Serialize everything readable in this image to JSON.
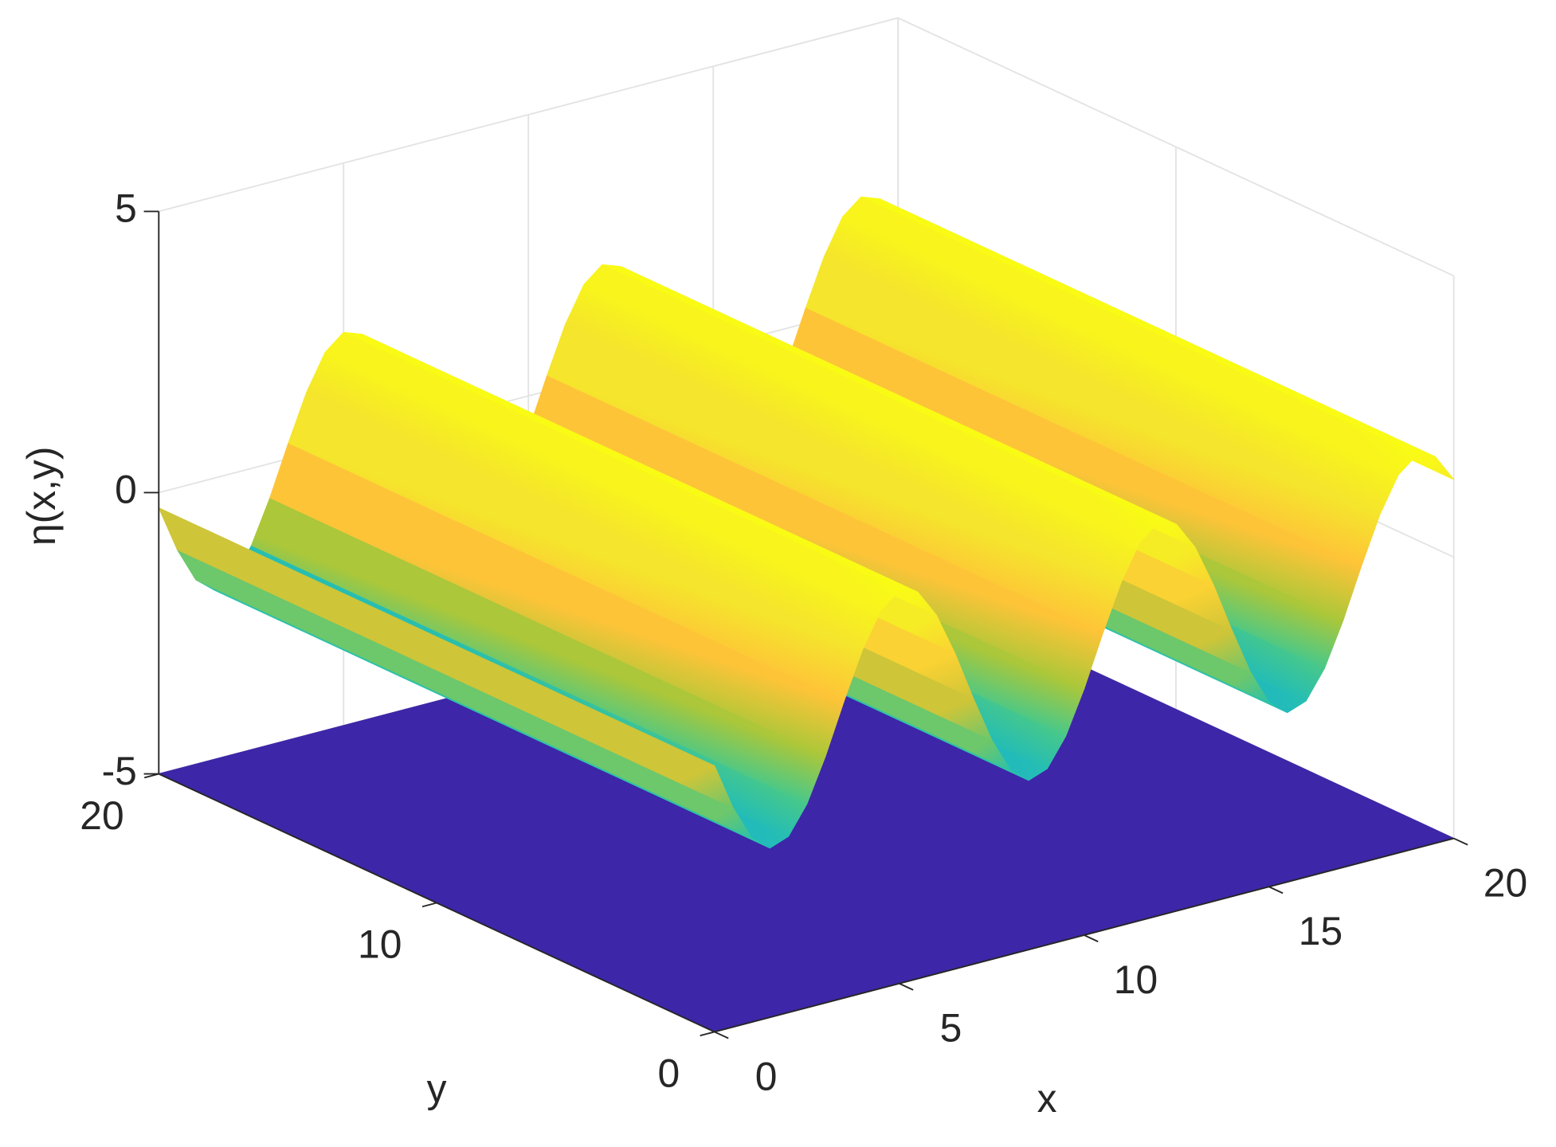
{
  "chart_data": {
    "type": "surface",
    "xlabel": "x",
    "ylabel": "y",
    "zlabel": "η(x,y)",
    "x": [
      0,
      0.5,
      1,
      1.5,
      2,
      2.5,
      3,
      3.5,
      4,
      4.5,
      5,
      5.5,
      6,
      6.5,
      7,
      7.5,
      8,
      8.5,
      9,
      9.5,
      10,
      10.5,
      11,
      11.5,
      12,
      12.5,
      13,
      13.5,
      14,
      14.5,
      15,
      15.5,
      16,
      16.5,
      17,
      17.5,
      18,
      18.5,
      19,
      19.5,
      20
    ],
    "values": [
      -0.27,
      -1.1,
      -1.72,
      -1.99,
      -1.87,
      -1.38,
      -0.62,
      0.27,
      1.1,
      1.72,
      1.99,
      1.87,
      1.38,
      0.62,
      -0.27,
      -1.1,
      -1.72,
      -1.99,
      -1.87,
      -1.38,
      -0.62,
      0.27,
      1.1,
      1.72,
      1.99,
      1.87,
      1.38,
      0.62,
      -0.27,
      -1.1,
      -1.72,
      -1.99,
      -1.87,
      -1.38,
      -0.62,
      0.27,
      1.1,
      1.72,
      1.99,
      1.87,
      1.38
    ],
    "base_plane": -5,
    "xlim": [
      0,
      20
    ],
    "ylim": [
      0,
      20
    ],
    "zlim": [
      -5,
      5
    ],
    "xticks": [
      0,
      5,
      10,
      15,
      20
    ],
    "yticks": [
      0,
      10,
      20
    ],
    "zticks": [
      -5,
      0,
      5
    ],
    "grid": true
  }
}
